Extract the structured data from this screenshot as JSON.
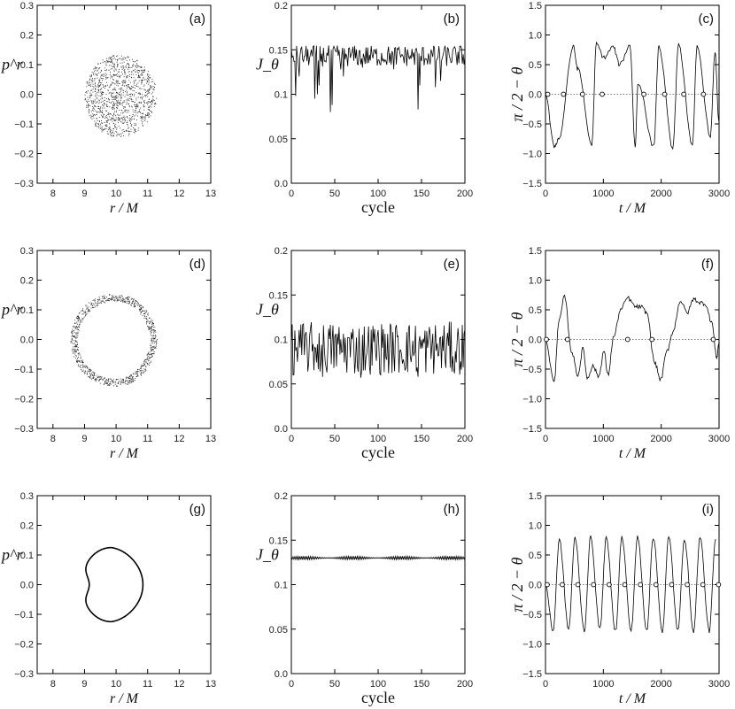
{
  "chart_data": [
    {
      "panel": "(a)",
      "type": "scatter",
      "shape": "filled",
      "xlabel": "r / M",
      "ylabel": "p^r",
      "xlim": [
        7.5,
        13
      ],
      "ylim": [
        -0.3,
        0.3
      ],
      "xticks": [
        "8",
        "9",
        "10",
        "11",
        "12",
        "13"
      ],
      "yticks": [
        "0.3",
        "0.2",
        "0.1",
        "0.0",
        "−0.1",
        "−0.2",
        "−0.3"
      ],
      "ring": {
        "center": [
          10.05,
          -0.003
        ],
        "rx_left": 1.05,
        "rx_right": 1.25,
        "ry_top": 0.137,
        "ry_bottom": 0.14,
        "inner_fraction": 0.0
      }
    },
    {
      "panel": "(b)",
      "type": "line",
      "xlabel": "cycle",
      "ylabel": "J_θ",
      "xlim": [
        0,
        200
      ],
      "ylim": [
        0,
        0.2
      ],
      "xticks": [
        "0",
        "50",
        "100",
        "150",
        "200"
      ],
      "yticks": [
        "0.2",
        "0.15",
        "0.1",
        "0.05",
        "0.0"
      ],
      "signal": {
        "n": 200,
        "base": 0.143,
        "amp": 0.012,
        "dips": [
          [
            5,
            0.098
          ],
          [
            9,
            0.12
          ],
          [
            27,
            0.095
          ],
          [
            30,
            0.1
          ],
          [
            32,
            0.11
          ],
          [
            45,
            0.08
          ],
          [
            47,
            0.088
          ],
          [
            57,
            0.128
          ],
          [
            60,
            0.12
          ],
          [
            82,
            0.13
          ],
          [
            118,
            0.128
          ],
          [
            146,
            0.083
          ],
          [
            148,
            0.11
          ],
          [
            166,
            0.108
          ],
          [
            172,
            0.115
          ],
          [
            193,
            0.135
          ]
        ]
      }
    },
    {
      "panel": "(c)",
      "type": "line",
      "xlabel": "t / M",
      "ylabel": "π / 2 − θ",
      "xlim": [
        0,
        3000
      ],
      "ylim": [
        -1.5,
        1.5
      ],
      "xticks": [
        "0",
        "1000",
        "2000",
        "3000"
      ],
      "yticks": [
        "1.5",
        "1.0",
        "0.5",
        "0.0",
        "−0.5",
        "−1.0",
        "−1.5"
      ],
      "zero_crossings": [
        40,
        310,
        640,
        980,
        1700,
        2060,
        2390,
        2730
      ],
      "peaks": [
        [
          150,
          -0.88
        ],
        [
          230,
          -0.75
        ],
        [
          480,
          0.8
        ],
        [
          560,
          0.42
        ],
        [
          800,
          -0.85
        ],
        [
          880,
          0.85
        ],
        [
          1010,
          0.62
        ],
        [
          1170,
          0.8
        ],
        [
          1280,
          0.5
        ],
        [
          1460,
          0.82
        ],
        [
          1550,
          -0.88
        ],
        [
          1600,
          0.2
        ],
        [
          1870,
          -0.88
        ],
        [
          1960,
          0.8
        ],
        [
          2200,
          -0.9
        ],
        [
          2300,
          0.82
        ],
        [
          2540,
          -0.85
        ],
        [
          2620,
          0.8
        ],
        [
          2850,
          -0.7
        ],
        [
          2930,
          0.7
        ],
        [
          3000,
          -0.5
        ]
      ]
    },
    {
      "panel": "(d)",
      "type": "scatter",
      "shape": "ring",
      "xlabel": "r / M",
      "ylabel": "p^r",
      "xlim": [
        7.5,
        13
      ],
      "ylim": [
        -0.3,
        0.3
      ],
      "xticks": [
        "8",
        "9",
        "10",
        "11",
        "12",
        "13"
      ],
      "yticks": [
        "0.3",
        "0.2",
        "0.1",
        "0.0",
        "−0.1",
        "−0.2",
        "−0.3"
      ],
      "ring": {
        "center": [
          9.95,
          0.0
        ],
        "rx_left": 1.4,
        "rx_right": 1.35,
        "ry_top": 0.155,
        "ry_bottom": 0.158,
        "inner_fraction": 0.84
      }
    },
    {
      "panel": "(e)",
      "type": "line",
      "xlabel": "cycle",
      "ylabel": "J_θ",
      "xlim": [
        0,
        200
      ],
      "ylim": [
        0,
        0.2
      ],
      "xticks": [
        "0",
        "50",
        "100",
        "150",
        "200"
      ],
      "yticks": [
        "0.2",
        "0.15",
        "0.1",
        "0.05",
        "0.0"
      ],
      "signal": {
        "n": 200,
        "base": 0.09,
        "amp": 0.03,
        "dips": [
          [
            2,
            0.06
          ],
          [
            36,
            0.058
          ],
          [
            80,
            0.057
          ],
          [
            146,
            0.058
          ],
          [
            188,
            0.062
          ]
        ]
      }
    },
    {
      "panel": "(f)",
      "type": "line",
      "xlabel": "t / M",
      "ylabel": "π / 2 − θ",
      "xlim": [
        0,
        3000
      ],
      "ylim": [
        -1.5,
        1.5
      ],
      "xticks": [
        "0",
        "1000",
        "2000",
        "3000"
      ],
      "yticks": [
        "1.5",
        "1.0",
        "0.5",
        "0.0",
        "−0.5",
        "−1.0",
        "−1.5"
      ],
      "zero_crossings": [
        15,
        380,
        1420,
        1840,
        2900
      ],
      "peaks": [
        [
          150,
          -0.72
        ],
        [
          230,
          0.3
        ],
        [
          330,
          0.72
        ],
        [
          450,
          -0.2
        ],
        [
          560,
          -0.6
        ],
        [
          650,
          -0.15
        ],
        [
          720,
          -0.65
        ],
        [
          820,
          -0.45
        ],
        [
          920,
          -0.62
        ],
        [
          1010,
          -0.2
        ],
        [
          1080,
          -0.6
        ],
        [
          1180,
          0.05
        ],
        [
          1300,
          0.5
        ],
        [
          1420,
          0.7
        ],
        [
          1560,
          0.55
        ],
        [
          1650,
          0.55
        ],
        [
          1750,
          0.45
        ],
        [
          1890,
          -0.4
        ],
        [
          1990,
          -0.68
        ],
        [
          2100,
          -0.2
        ],
        [
          2200,
          0.12
        ],
        [
          2330,
          0.65
        ],
        [
          2450,
          0.45
        ],
        [
          2560,
          0.68
        ],
        [
          2680,
          0.62
        ],
        [
          2760,
          0.6
        ],
        [
          2870,
          0.3
        ],
        [
          2960,
          -0.3
        ],
        [
          3000,
          -0.05
        ]
      ]
    },
    {
      "panel": "(g)",
      "type": "scatter",
      "shape": "curve",
      "xlabel": "r / M",
      "ylabel": "p^r",
      "xlim": [
        7.5,
        13
      ],
      "ylim": [
        -0.3,
        0.3
      ],
      "xticks": [
        "8",
        "9",
        "10",
        "11",
        "12",
        "13"
      ],
      "yticks": [
        "0.3",
        "0.2",
        "0.1",
        "0.0",
        "−0.1",
        "−0.2",
        "−0.3"
      ],
      "curve": {
        "center": [
          9.85,
          0.0
        ],
        "rx_left": 0.95,
        "rx_right": 1.0,
        "ry": 0.125,
        "notch": 0.25
      }
    },
    {
      "panel": "(h)",
      "type": "line",
      "xlabel": "cycle",
      "ylabel": "J_θ",
      "xlim": [
        0,
        200
      ],
      "ylim": [
        0,
        0.2
      ],
      "xticks": [
        "0",
        "50",
        "100",
        "150",
        "200"
      ],
      "yticks": [
        "0.2",
        "0.15",
        "0.1",
        "0.05",
        "0.0"
      ],
      "signal": {
        "n": 200,
        "base": 0.13,
        "amp": 0.002,
        "dips": []
      }
    },
    {
      "panel": "(i)",
      "type": "line",
      "xlabel": "t / M",
      "ylabel": "π / 2 − θ",
      "xlim": [
        0,
        3000
      ],
      "ylim": [
        -1.5,
        1.5
      ],
      "xticks": [
        "0",
        "1000",
        "2000",
        "3000"
      ],
      "yticks": [
        "1.5",
        "1.0",
        "0.5",
        "0.0",
        "−0.5",
        "−1.0",
        "−1.5"
      ],
      "zero_crossings": [
        30,
        290,
        560,
        830,
        1100,
        1370,
        1640,
        1910,
        2180,
        2450,
        2720,
        2990
      ],
      "peaks": [
        [
          130,
          -0.78
        ],
        [
          240,
          0.75
        ],
        [
          400,
          -0.75
        ],
        [
          510,
          0.78
        ],
        [
          670,
          -0.78
        ],
        [
          780,
          0.8
        ],
        [
          940,
          -0.75
        ],
        [
          1050,
          0.78
        ],
        [
          1210,
          -0.78
        ],
        [
          1320,
          0.8
        ],
        [
          1480,
          -0.78
        ],
        [
          1590,
          0.8
        ],
        [
          1750,
          -0.78
        ],
        [
          1860,
          0.8
        ],
        [
          2020,
          -0.78
        ],
        [
          2130,
          0.8
        ],
        [
          2290,
          -0.78
        ],
        [
          2400,
          0.78
        ],
        [
          2560,
          -0.78
        ],
        [
          2670,
          0.8
        ],
        [
          2830,
          -0.78
        ],
        [
          2940,
          0.75
        ]
      ]
    }
  ]
}
